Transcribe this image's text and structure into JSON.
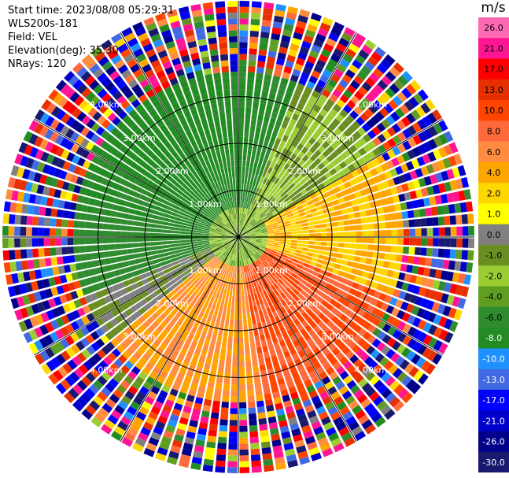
{
  "header": {
    "start_time": "Start time: 2023/08/08 05:29:31",
    "instrument": "WLS200s-181",
    "field": "Field: VEL",
    "elevation": "Elevation(deg): 35.30",
    "nrays": "NRays: 120"
  },
  "colorbar": {
    "unit": "m/s",
    "ticks": [
      "26.0",
      "21.0",
      "17.0",
      "13.0",
      "10.0",
      "8.0",
      "6.0",
      "4.0",
      "2.0",
      "1.0",
      "0.0",
      "-1.0",
      "-2.0",
      "-4.0",
      "-6.0",
      "-8.0",
      "-10.0",
      "-13.0",
      "-17.0",
      "-21.0",
      "-26.0",
      "-30.0"
    ],
    "colors": [
      "#ff69b4",
      "#ff1493",
      "#ff0000",
      "#e63000",
      "#ff4500",
      "#ff6a3d",
      "#ff8c40",
      "#ffa500",
      "#ffd700",
      "#ffff00",
      "#808080",
      "#6b8e23",
      "#9acd32",
      "#5f9e20",
      "#2e8b2e",
      "#228b22",
      "#1e90ff",
      "#4169e1",
      "#0000ff",
      "#0000cd",
      "#00008b",
      "#191970"
    ]
  },
  "chart_data": {
    "type": "heatmap",
    "subtype": "polar-ppi",
    "field": "VEL",
    "units": "m/s",
    "nrays": 120,
    "value_range": [
      -30.0,
      26.0
    ],
    "range_rings_km": [
      1.0,
      2.0,
      3.0
    ],
    "range_ring_labels": [
      "1.00km",
      "2.00km",
      "3.00km"
    ],
    "outer_ring_labels": [
      "4.00km"
    ],
    "grid": true,
    "spokes_deg": [
      0,
      30,
      60,
      90,
      120,
      150
    ],
    "features": {
      "northwest_sector_velocity": -8.0,
      "east_sector_velocity": 4.0,
      "southeast_sector_velocity": 10.0,
      "south_sector_velocity": 6.0,
      "center_velocity": -2.0,
      "outer_rings": "noise (random colors)"
    }
  }
}
